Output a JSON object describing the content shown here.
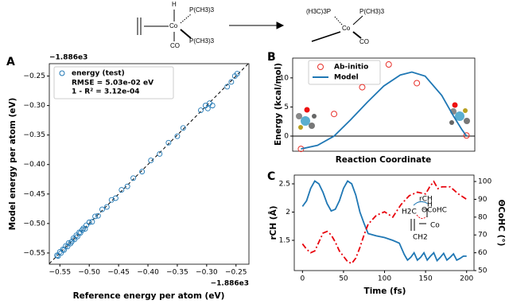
{
  "scheme": {
    "left": [
      "H",
      "P(CH3)3",
      "Co",
      "P(CH3)3",
      "CO"
    ],
    "right": [
      "(H3C)3P",
      "P(CH3)3",
      "Co",
      "CO"
    ]
  },
  "chart_data": [
    {
      "type": "scatter",
      "panel_label": "A",
      "xlabel": "Reference energy per atom (eV)",
      "ylabel": "Model energy per atom (eV)",
      "offset_text_x": "−1.886e3",
      "offset_text_y": "−1.886e3",
      "xlim": [
        -0.568,
        -0.228
      ],
      "ylim": [
        -0.569,
        -0.229
      ],
      "xticks": [
        {
          "value": -0.55,
          "label": "−0.55"
        },
        {
          "value": -0.5,
          "label": "−0.50"
        },
        {
          "value": -0.45,
          "label": "−0.45"
        },
        {
          "value": -0.4,
          "label": "−0.40"
        },
        {
          "value": -0.35,
          "label": "−0.35"
        },
        {
          "value": -0.3,
          "label": "−0.30"
        },
        {
          "value": -0.25,
          "label": "−0.25"
        }
      ],
      "yticks": [
        {
          "value": -0.55,
          "label": "−0.55"
        },
        {
          "value": -0.5,
          "label": "−0.50"
        },
        {
          "value": -0.45,
          "label": "−0.45"
        },
        {
          "value": -0.4,
          "label": "−0.40"
        },
        {
          "value": -0.35,
          "label": "−0.35"
        },
        {
          "value": -0.3,
          "label": "−0.30"
        },
        {
          "value": -0.25,
          "label": "−0.25"
        }
      ],
      "diagonal": true,
      "annotations": [
        "RMSE = 5.03e-02 eV",
        "1 - R² = 3.12e-04"
      ],
      "series": [
        {
          "name": "energy (test)",
          "color": "#1f77b4",
          "x": [
            -0.555,
            -0.553,
            -0.55,
            -0.548,
            -0.545,
            -0.543,
            -0.54,
            -0.537,
            -0.535,
            -0.532,
            -0.53,
            -0.527,
            -0.525,
            -0.522,
            -0.52,
            -0.517,
            -0.515,
            -0.512,
            -0.51,
            -0.507,
            -0.505,
            -0.5,
            -0.495,
            -0.49,
            -0.485,
            -0.478,
            -0.47,
            -0.462,
            -0.455,
            -0.445,
            -0.435,
            -0.425,
            -0.41,
            -0.395,
            -0.38,
            -0.365,
            -0.35,
            -0.34,
            -0.31,
            -0.302,
            -0.298,
            -0.295,
            -0.29,
            -0.265,
            -0.258,
            -0.252,
            -0.248
          ],
          "values": [
            -0.554,
            -0.555,
            -0.548,
            -0.55,
            -0.544,
            -0.545,
            -0.538,
            -0.539,
            -0.533,
            -0.534,
            -0.531,
            -0.525,
            -0.527,
            -0.52,
            -0.522,
            -0.515,
            -0.516,
            -0.511,
            -0.508,
            -0.509,
            -0.503,
            -0.498,
            -0.497,
            -0.488,
            -0.487,
            -0.476,
            -0.472,
            -0.46,
            -0.457,
            -0.443,
            -0.437,
            -0.423,
            -0.412,
            -0.393,
            -0.382,
            -0.363,
            -0.352,
            -0.338,
            -0.308,
            -0.3,
            -0.305,
            -0.296,
            -0.3,
            -0.268,
            -0.26,
            -0.25,
            -0.246
          ]
        }
      ]
    },
    {
      "type": "combo",
      "panel_label": "B",
      "xlabel": "Reaction Coordinate",
      "ylabel": "Energy (kcal/mol)",
      "xlim": [
        -0.05,
        1.05
      ],
      "ylim": [
        -2.6,
        13.4
      ],
      "yticks": [
        0,
        5,
        10
      ],
      "hline": 0,
      "series": [
        {
          "name": "Ab-initio",
          "kind": "scatter",
          "color": "#e8302a",
          "x": [
            0,
            0.2,
            0.37,
            0.53,
            0.7,
            1
          ],
          "values": [
            -2.2,
            3.8,
            8.4,
            12.3,
            9.1,
            0.1
          ]
        },
        {
          "name": "Model",
          "kind": "line",
          "color": "#1f77b4",
          "x": [
            0,
            0.1,
            0.2,
            0.3,
            0.4,
            0.5,
            0.6,
            0.67,
            0.75,
            0.85,
            0.92,
            0.97,
            1
          ],
          "values": [
            -2.2,
            -1.6,
            0.0,
            2.8,
            5.8,
            8.6,
            10.5,
            11.0,
            10.3,
            7.0,
            3.5,
            1.2,
            0
          ]
        }
      ]
    },
    {
      "type": "line",
      "panel_label": "C",
      "xlabel": "Time (fs)",
      "ylabel": "rCH (Å)",
      "y2label": "ΘCoHC (°)",
      "xlim": [
        -10,
        209
      ],
      "ylim": [
        0.965,
        2.655
      ],
      "y2lim": [
        50,
        103.6
      ],
      "xticks": [
        0,
        50,
        100,
        150,
        200
      ],
      "yticks": [
        1.5,
        2.0,
        2.5
      ],
      "y2ticks": [
        50,
        60,
        70,
        80,
        90,
        100
      ],
      "inset_labels": [
        "H2C",
        "H",
        "CH2",
        "Co",
        "rCH",
        "ΘCoHC"
      ],
      "series": [
        {
          "color": "#1f77b4",
          "linestyle": "solid",
          "x": [
            0,
            5,
            10,
            15,
            20,
            25,
            30,
            35,
            40,
            45,
            50,
            55,
            60,
            65,
            70,
            75,
            80,
            90,
            100,
            110,
            118,
            124,
            128,
            132,
            136,
            140,
            144,
            148,
            152,
            156,
            160,
            164,
            168,
            172,
            176,
            180,
            184,
            188,
            192,
            196,
            200
          ],
          "values": [
            2.1,
            2.2,
            2.42,
            2.55,
            2.5,
            2.35,
            2.15,
            2.02,
            2.05,
            2.2,
            2.42,
            2.55,
            2.5,
            2.3,
            2.0,
            1.8,
            1.62,
            1.58,
            1.55,
            1.5,
            1.45,
            1.25,
            1.15,
            1.2,
            1.28,
            1.15,
            1.2,
            1.28,
            1.15,
            1.22,
            1.28,
            1.14,
            1.2,
            1.27,
            1.15,
            1.2,
            1.26,
            1.15,
            1.18,
            1.22,
            1.22
          ]
        },
        {
          "color": "#e8000b",
          "linestyle": "dashdot",
          "axis": "y2",
          "x": [
            0,
            5,
            10,
            15,
            20,
            25,
            30,
            35,
            40,
            45,
            50,
            55,
            60,
            65,
            70,
            75,
            80,
            90,
            100,
            110,
            120,
            130,
            140,
            150,
            155,
            160,
            165,
            170,
            180,
            190,
            200
          ],
          "values": [
            65,
            62,
            60,
            61,
            66,
            71,
            72,
            70,
            66,
            61,
            58,
            55,
            54,
            57,
            63,
            70,
            76,
            81,
            83,
            80,
            87,
            92,
            94,
            93,
            97,
            100,
            96,
            97,
            97,
            93,
            90
          ]
        }
      ]
    }
  ]
}
